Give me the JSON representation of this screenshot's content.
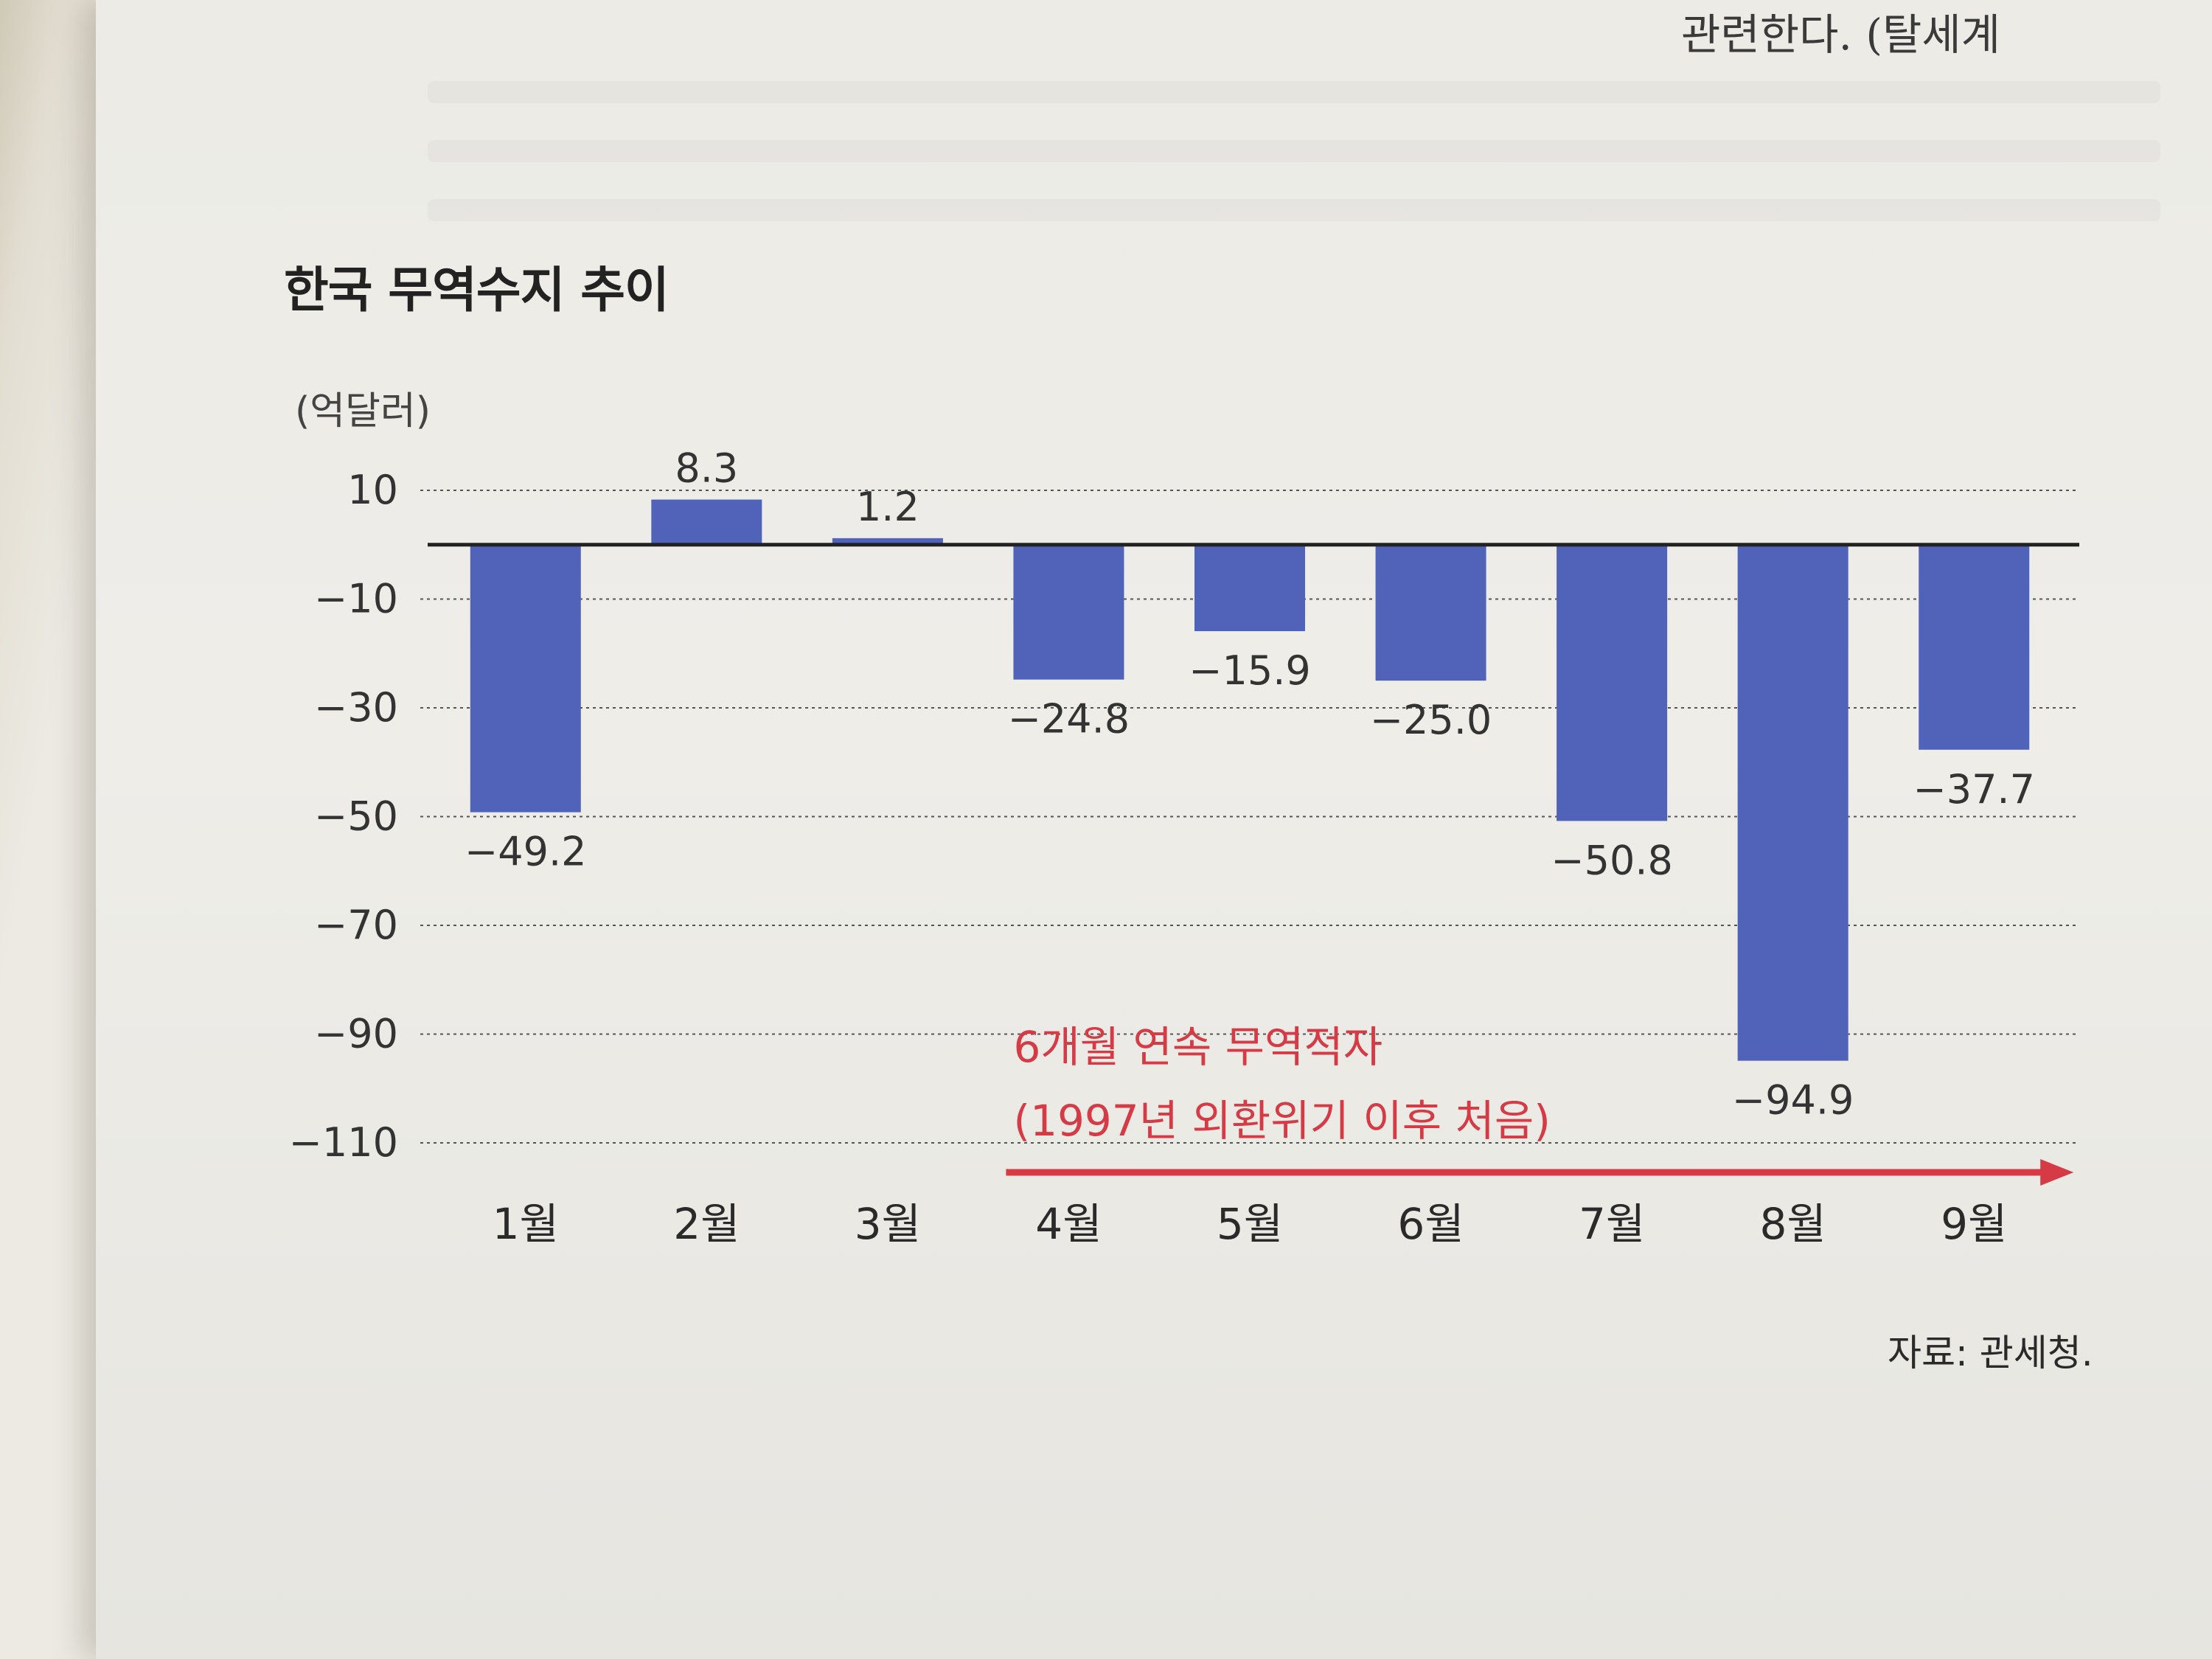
{
  "page": {
    "top_fragment": "관련한다. (탈세계",
    "source": "자료: 관세청."
  },
  "colors": {
    "bar": "#5063b8",
    "annotation": "#d63a45"
  },
  "chart_data": {
    "type": "bar",
    "title": "한국 무역수지 추이",
    "unit_label": "(억달러)",
    "categories": [
      "1월",
      "2월",
      "3월",
      "4월",
      "5월",
      "6월",
      "7월",
      "8월",
      "9월"
    ],
    "values": [
      -49.2,
      8.3,
      1.2,
      -24.8,
      -15.9,
      -25.0,
      -50.8,
      -94.9,
      -37.7
    ],
    "value_labels": [
      "−49.2",
      "8.3",
      "1.2",
      "−24.8",
      "−15.9",
      "−25.0",
      "−50.8",
      "−94.9",
      "−37.7"
    ],
    "yticks": [
      10,
      -10,
      -30,
      -50,
      -70,
      -90,
      -110
    ],
    "ytick_labels": [
      "10",
      "−10",
      "−30",
      "−50",
      "−70",
      "−90",
      "−110"
    ],
    "ylim": [
      -110,
      10
    ],
    "grid": true,
    "annotation": {
      "line1": "6개월 연속 무역적자",
      "line2": "(1997년 외환위기 이후 처음)",
      "from_category": "4월",
      "to_category": "9월"
    }
  }
}
